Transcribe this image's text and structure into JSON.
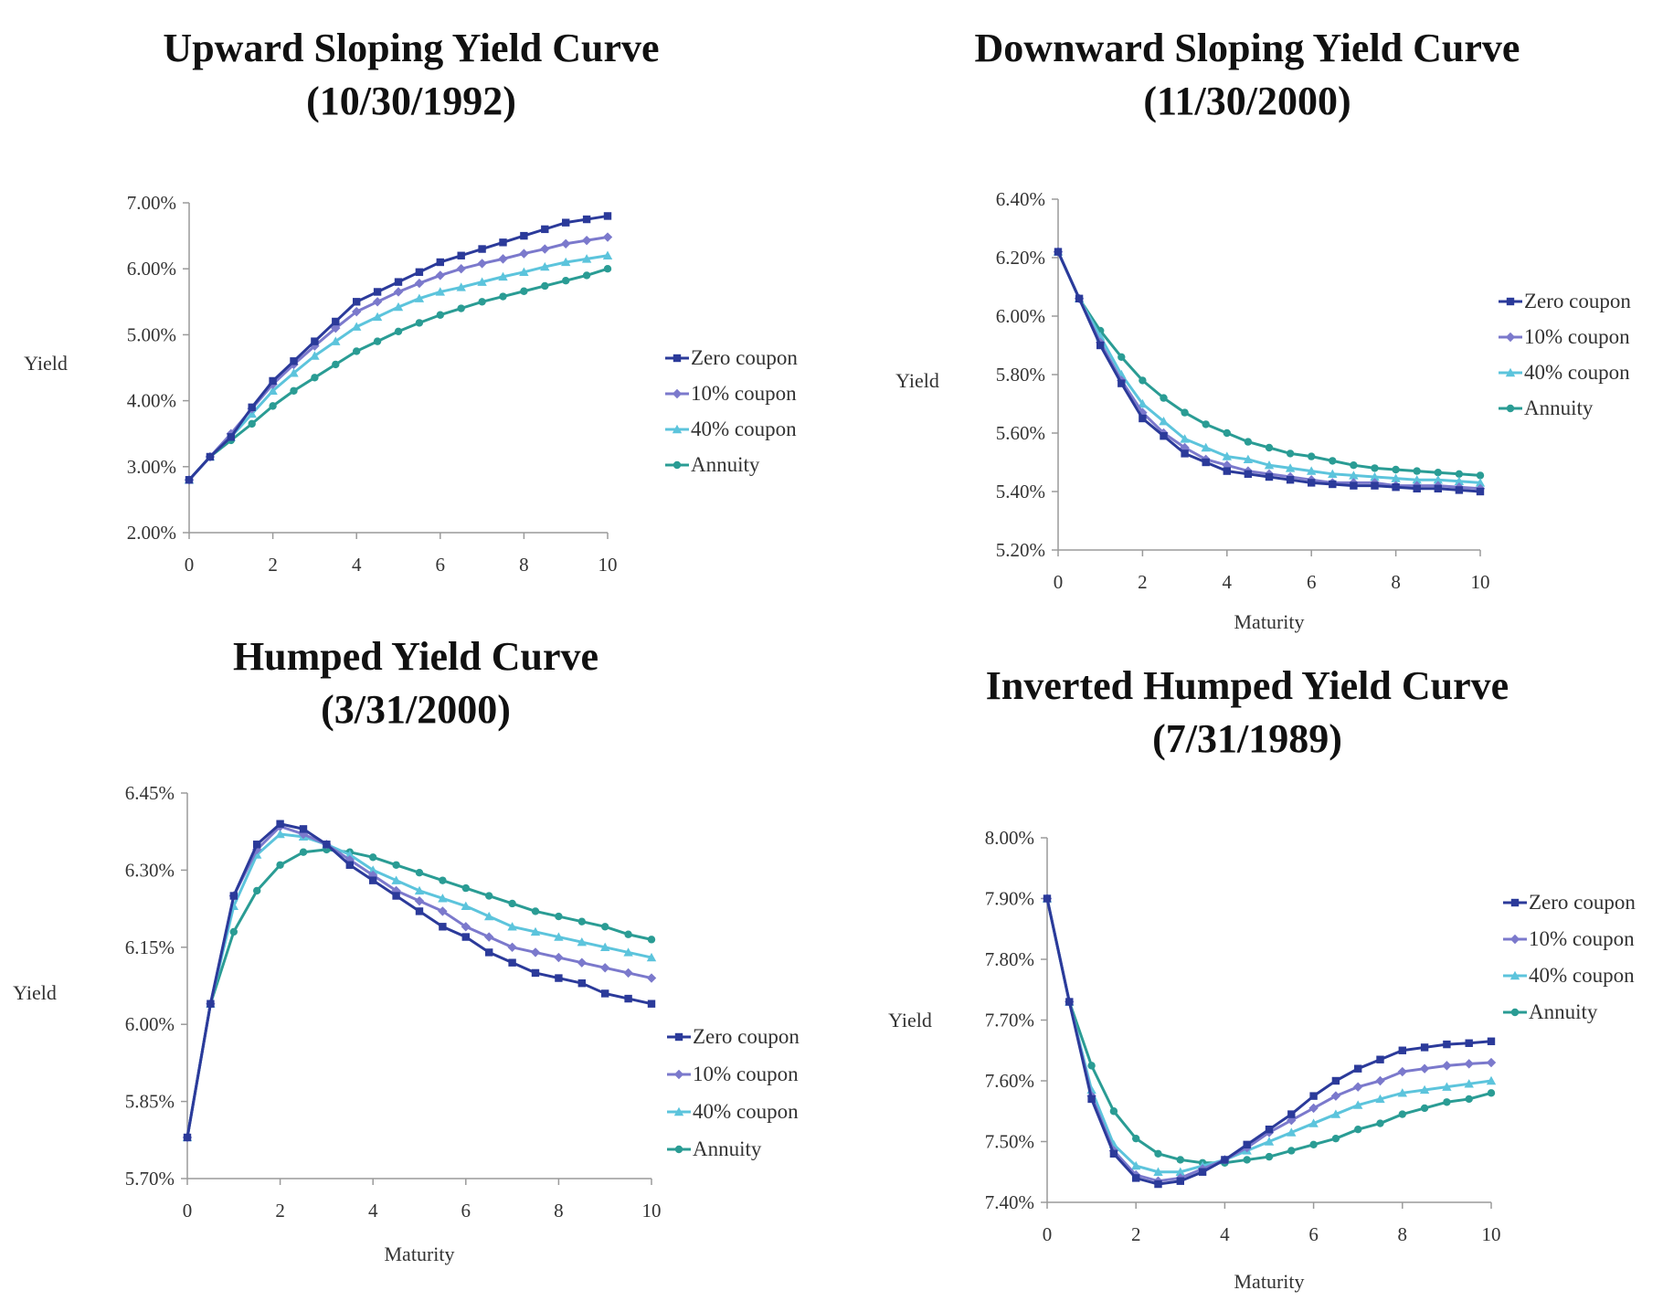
{
  "colors": {
    "zero": "#2b3a9a",
    "ten": "#7b79cc",
    "forty": "#5cc4dc",
    "annuity": "#2a9c94",
    "axis": "#9a9a9a"
  },
  "chart_data": [
    {
      "type": "line",
      "title": "Upward Sloping Yield Curve",
      "subtitle": "(10/30/1992)",
      "xlabel": "",
      "ylabel": "Yield",
      "xlim": [
        0,
        10
      ],
      "ylim": [
        2.0,
        7.0
      ],
      "x_ticks": [
        "0",
        "2",
        "4",
        "6",
        "8",
        "10"
      ],
      "y_ticks": [
        "2.00%",
        "3.00%",
        "4.00%",
        "5.00%",
        "6.00%",
        "7.00%"
      ],
      "legend_position": "right",
      "x": [
        0,
        0.5,
        1,
        1.5,
        2,
        2.5,
        3,
        3.5,
        4,
        4.5,
        5,
        5.5,
        6,
        6.5,
        7,
        7.5,
        8,
        8.5,
        9,
        9.5,
        10
      ],
      "series": [
        {
          "name": "Zero coupon",
          "values": [
            2.8,
            3.15,
            3.45,
            3.9,
            4.3,
            4.6,
            4.9,
            5.2,
            5.5,
            5.65,
            5.8,
            5.95,
            6.1,
            6.2,
            6.3,
            6.4,
            6.5,
            6.6,
            6.7,
            6.75,
            6.8
          ]
        },
        {
          "name": "10% coupon",
          "values": [
            2.8,
            3.15,
            3.5,
            3.88,
            4.25,
            4.55,
            4.83,
            5.1,
            5.35,
            5.5,
            5.65,
            5.78,
            5.9,
            6.0,
            6.08,
            6.15,
            6.23,
            6.3,
            6.38,
            6.43,
            6.48
          ]
        },
        {
          "name": "40% coupon",
          "values": [
            2.8,
            3.15,
            3.45,
            3.8,
            4.15,
            4.42,
            4.68,
            4.9,
            5.12,
            5.27,
            5.42,
            5.55,
            5.65,
            5.72,
            5.8,
            5.88,
            5.95,
            6.03,
            6.1,
            6.15,
            6.2
          ]
        },
        {
          "name": "Annuity",
          "values": [
            2.8,
            3.15,
            3.4,
            3.65,
            3.92,
            4.15,
            4.35,
            4.55,
            4.75,
            4.9,
            5.05,
            5.18,
            5.3,
            5.4,
            5.5,
            5.58,
            5.66,
            5.74,
            5.82,
            5.9,
            6.0
          ]
        }
      ]
    },
    {
      "type": "line",
      "title": "Downward Sloping Yield Curve",
      "subtitle": "(11/30/2000)",
      "xlabel": "Maturity",
      "ylabel": "Yield",
      "xlim": [
        0,
        10
      ],
      "ylim": [
        5.2,
        6.4
      ],
      "x_ticks": [
        "0",
        "2",
        "4",
        "6",
        "8",
        "10"
      ],
      "y_ticks": [
        "5.20%",
        "5.40%",
        "5.60%",
        "5.80%",
        "6.00%",
        "6.20%",
        "6.40%"
      ],
      "legend_position": "right",
      "x": [
        0,
        0.5,
        1,
        1.5,
        2,
        2.5,
        3,
        3.5,
        4,
        4.5,
        5,
        5.5,
        6,
        6.5,
        7,
        7.5,
        8,
        8.5,
        9,
        9.5,
        10
      ],
      "series": [
        {
          "name": "Zero coupon",
          "values": [
            6.22,
            6.06,
            5.9,
            5.77,
            5.65,
            5.59,
            5.53,
            5.5,
            5.47,
            5.46,
            5.45,
            5.44,
            5.43,
            5.425,
            5.42,
            5.42,
            5.415,
            5.41,
            5.41,
            5.405,
            5.4
          ]
        },
        {
          "name": "10% coupon",
          "values": [
            6.22,
            6.06,
            5.91,
            5.78,
            5.67,
            5.6,
            5.55,
            5.51,
            5.49,
            5.47,
            5.46,
            5.45,
            5.44,
            5.43,
            5.43,
            5.43,
            5.42,
            5.42,
            5.42,
            5.415,
            5.41
          ]
        },
        {
          "name": "40% coupon",
          "values": [
            6.22,
            6.06,
            5.93,
            5.8,
            5.7,
            5.64,
            5.58,
            5.55,
            5.52,
            5.51,
            5.49,
            5.48,
            5.47,
            5.46,
            5.455,
            5.45,
            5.445,
            5.44,
            5.44,
            5.435,
            5.43
          ]
        },
        {
          "name": "Annuity",
          "values": [
            6.22,
            6.06,
            5.95,
            5.86,
            5.78,
            5.72,
            5.67,
            5.63,
            5.6,
            5.57,
            5.55,
            5.53,
            5.52,
            5.505,
            5.49,
            5.48,
            5.475,
            5.47,
            5.465,
            5.46,
            5.455
          ]
        }
      ]
    },
    {
      "type": "line",
      "title": "Humped Yield Curve",
      "subtitle": "(3/31/2000)",
      "xlabel": "Maturity",
      "ylabel": "Yield",
      "xlim": [
        0,
        10
      ],
      "ylim": [
        5.7,
        6.45
      ],
      "x_ticks": [
        "0",
        "2",
        "4",
        "6",
        "8",
        "10"
      ],
      "y_ticks": [
        "5.70%",
        "5.85%",
        "6.00%",
        "6.15%",
        "6.30%",
        "6.45%"
      ],
      "legend_position": "bottom-right",
      "x": [
        0,
        0.5,
        1,
        1.5,
        2,
        2.5,
        3,
        3.5,
        4,
        4.5,
        5,
        5.5,
        6,
        6.5,
        7,
        7.5,
        8,
        8.5,
        9,
        9.5,
        10
      ],
      "series": [
        {
          "name": "Zero coupon",
          "values": [
            5.78,
            6.04,
            6.25,
            6.35,
            6.39,
            6.38,
            6.35,
            6.31,
            6.28,
            6.25,
            6.22,
            6.19,
            6.17,
            6.14,
            6.12,
            6.1,
            6.09,
            6.08,
            6.06,
            6.05,
            6.04
          ]
        },
        {
          "name": "10% coupon",
          "values": [
            5.78,
            6.04,
            6.25,
            6.34,
            6.385,
            6.37,
            6.35,
            6.32,
            6.29,
            6.26,
            6.24,
            6.22,
            6.19,
            6.17,
            6.15,
            6.14,
            6.13,
            6.12,
            6.11,
            6.1,
            6.09
          ]
        },
        {
          "name": "40% coupon",
          "values": [
            5.78,
            6.04,
            6.23,
            6.33,
            6.37,
            6.365,
            6.35,
            6.33,
            6.3,
            6.28,
            6.26,
            6.245,
            6.23,
            6.21,
            6.19,
            6.18,
            6.17,
            6.16,
            6.15,
            6.14,
            6.13
          ]
        },
        {
          "name": "Annuity",
          "values": [
            5.78,
            6.04,
            6.18,
            6.26,
            6.31,
            6.335,
            6.34,
            6.335,
            6.325,
            6.31,
            6.295,
            6.28,
            6.265,
            6.25,
            6.235,
            6.22,
            6.21,
            6.2,
            6.19,
            6.175,
            6.165
          ]
        }
      ]
    },
    {
      "type": "line",
      "title": "Inverted Humped Yield Curve",
      "subtitle": "(7/31/1989)",
      "xlabel": "Maturity",
      "ylabel": "Yield",
      "xlim": [
        0,
        10
      ],
      "ylim": [
        7.4,
        8.0
      ],
      "x_ticks": [
        "0",
        "2",
        "4",
        "6",
        "8",
        "10"
      ],
      "y_ticks": [
        "7.40%",
        "7.50%",
        "7.60%",
        "7.70%",
        "7.80%",
        "7.90%",
        "8.00%"
      ],
      "legend_position": "right",
      "x": [
        0,
        0.5,
        1,
        1.5,
        2,
        2.5,
        3,
        3.5,
        4,
        4.5,
        5,
        5.5,
        6,
        6.5,
        7,
        7.5,
        8,
        8.5,
        9,
        9.5,
        10
      ],
      "series": [
        {
          "name": "Zero coupon",
          "values": [
            7.9,
            7.73,
            7.57,
            7.48,
            7.44,
            7.43,
            7.435,
            7.45,
            7.47,
            7.495,
            7.52,
            7.545,
            7.575,
            7.6,
            7.62,
            7.635,
            7.65,
            7.655,
            7.66,
            7.662,
            7.665
          ]
        },
        {
          "name": "10% coupon",
          "values": [
            7.9,
            7.73,
            7.575,
            7.485,
            7.445,
            7.435,
            7.44,
            7.455,
            7.47,
            7.49,
            7.515,
            7.535,
            7.555,
            7.575,
            7.59,
            7.6,
            7.615,
            7.62,
            7.625,
            7.628,
            7.63
          ]
        },
        {
          "name": "40% coupon",
          "values": [
            7.9,
            7.73,
            7.585,
            7.495,
            7.46,
            7.45,
            7.45,
            7.46,
            7.47,
            7.485,
            7.5,
            7.515,
            7.53,
            7.545,
            7.56,
            7.57,
            7.58,
            7.585,
            7.59,
            7.595,
            7.6
          ]
        },
        {
          "name": "Annuity",
          "values": [
            7.9,
            7.73,
            7.625,
            7.55,
            7.505,
            7.48,
            7.47,
            7.465,
            7.465,
            7.47,
            7.475,
            7.485,
            7.495,
            7.505,
            7.52,
            7.53,
            7.545,
            7.555,
            7.565,
            7.57,
            7.58
          ]
        }
      ]
    }
  ]
}
